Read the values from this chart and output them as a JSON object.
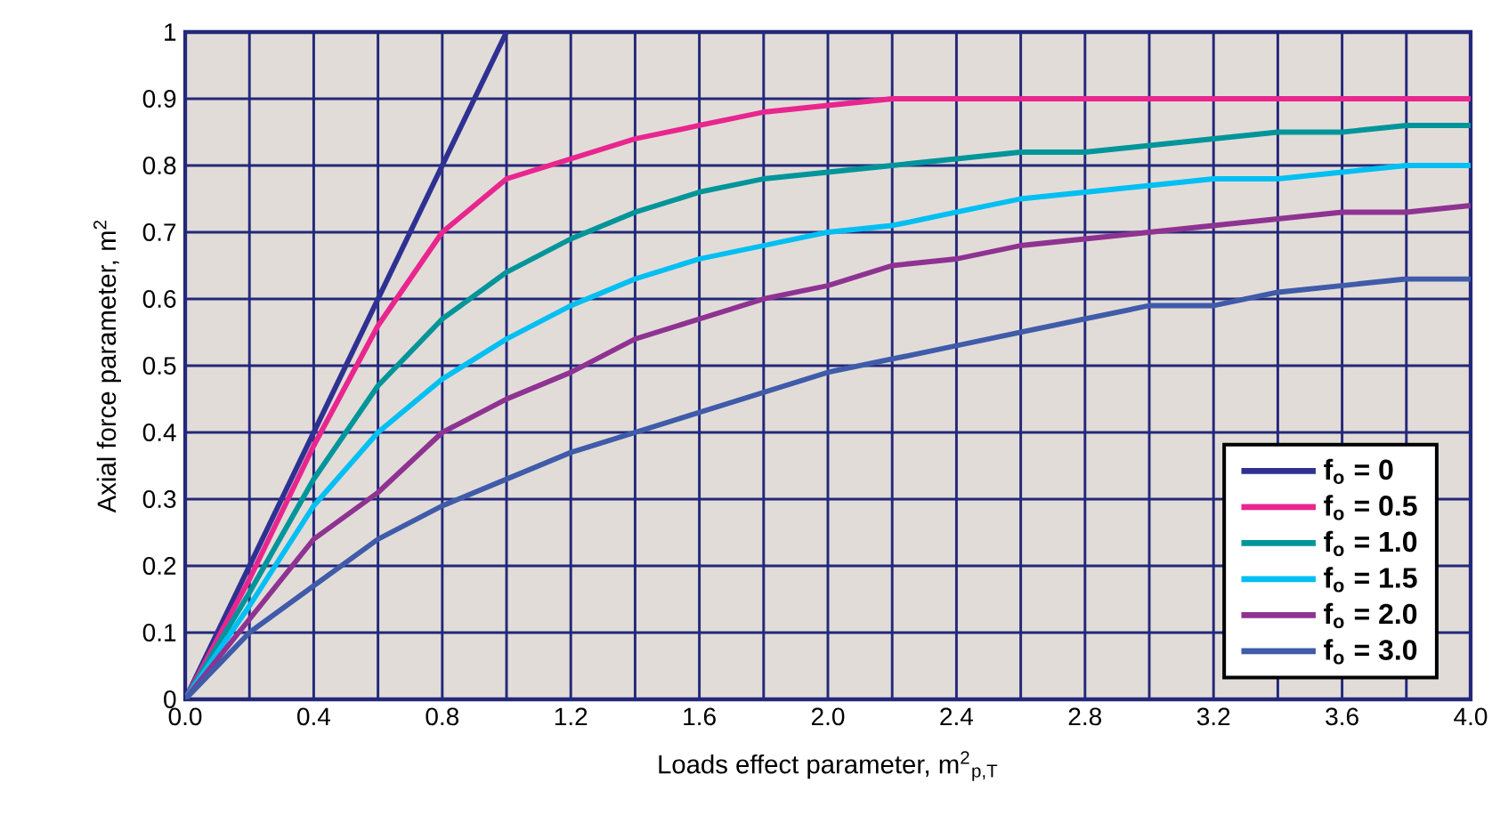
{
  "chart_data": {
    "type": "line",
    "xlabel": "Loads effect parameter, m$^{2}$$_{p,T}$",
    "ylabel": "Axial force parameter, m$^{2}$",
    "x": [
      0,
      0.2,
      0.4,
      0.6,
      0.8,
      1.0,
      1.2,
      1.4,
      1.6,
      1.8,
      2.0,
      2.2,
      2.4,
      2.6,
      2.8,
      3.0,
      3.2,
      3.4,
      3.6,
      3.8,
      4.0
    ],
    "series": [
      {
        "name": "f$_{o}$ = 0",
        "color": "#2e3192",
        "x": [
          0,
          1.0
        ],
        "values": [
          0,
          1.0
        ]
      },
      {
        "name": "f$_{o}$ = 0.5",
        "color": "#e8268e",
        "values": [
          0,
          0.18,
          0.38,
          0.56,
          0.7,
          0.78,
          0.81,
          0.84,
          0.86,
          0.88,
          0.89,
          0.9,
          0.9,
          0.9,
          0.9,
          0.9,
          0.9,
          0.9,
          0.9,
          0.9,
          0.9
        ]
      },
      {
        "name": "f$_{o}$ = 1.0",
        "color": "#00959a",
        "values": [
          0,
          0.16,
          0.33,
          0.47,
          0.57,
          0.64,
          0.69,
          0.73,
          0.76,
          0.78,
          0.79,
          0.8,
          0.81,
          0.82,
          0.82,
          0.83,
          0.84,
          0.85,
          0.85,
          0.86,
          0.86
        ]
      },
      {
        "name": "f$_{o}$ = 1.5",
        "color": "#00bff3",
        "values": [
          0,
          0.14,
          0.29,
          0.4,
          0.48,
          0.54,
          0.59,
          0.63,
          0.66,
          0.68,
          0.7,
          0.71,
          0.73,
          0.75,
          0.76,
          0.77,
          0.78,
          0.78,
          0.79,
          0.8,
          0.8
        ]
      },
      {
        "name": "f$_{o}$ = 2.0",
        "color": "#8e3391",
        "values": [
          0,
          0.12,
          0.24,
          0.31,
          0.4,
          0.45,
          0.49,
          0.54,
          0.57,
          0.6,
          0.62,
          0.65,
          0.66,
          0.68,
          0.69,
          0.7,
          0.71,
          0.72,
          0.73,
          0.73,
          0.74
        ]
      },
      {
        "name": "f$_{o}$ = 3.0",
        "color": "#3f5ba9",
        "values": [
          0,
          0.1,
          0.17,
          0.24,
          0.29,
          0.33,
          0.37,
          0.4,
          0.43,
          0.46,
          0.49,
          0.51,
          0.53,
          0.55,
          0.57,
          0.59,
          0.59,
          0.61,
          0.62,
          0.63,
          0.63
        ]
      }
    ],
    "xlim": [
      0,
      4.0
    ],
    "ylim": [
      0,
      1
    ],
    "xticks": [
      {
        "value": 0,
        "label": "0.0"
      },
      {
        "value": 0.2,
        "label": null
      },
      {
        "value": 0.4,
        "label": "0.4"
      },
      {
        "value": 0.6,
        "label": null
      },
      {
        "value": 0.8,
        "label": "0.8"
      },
      {
        "value": 1.0,
        "label": null
      },
      {
        "value": 1.2,
        "label": "1.2"
      },
      {
        "value": 1.4,
        "label": null
      },
      {
        "value": 1.6,
        "label": "1.6"
      },
      {
        "value": 1.8,
        "label": null
      },
      {
        "value": 2.0,
        "label": "2.0"
      },
      {
        "value": 2.2,
        "label": null
      },
      {
        "value": 2.4,
        "label": "2.4"
      },
      {
        "value": 2.6,
        "label": null
      },
      {
        "value": 2.8,
        "label": "2.8"
      },
      {
        "value": 3.0,
        "label": null
      },
      {
        "value": 3.2,
        "label": "3.2"
      },
      {
        "value": 3.4,
        "label": null
      },
      {
        "value": 3.6,
        "label": "3.6"
      },
      {
        "value": 3.8,
        "label": null
      },
      {
        "value": 4.0,
        "label": "4.0"
      }
    ],
    "yticks": [
      0,
      0.1,
      0.2,
      0.3,
      0.4,
      0.5,
      0.6,
      0.7,
      0.8,
      0.9,
      1
    ],
    "grid": true,
    "legend": "bottom right",
    "marker": "none",
    "line_style": "solid"
  }
}
